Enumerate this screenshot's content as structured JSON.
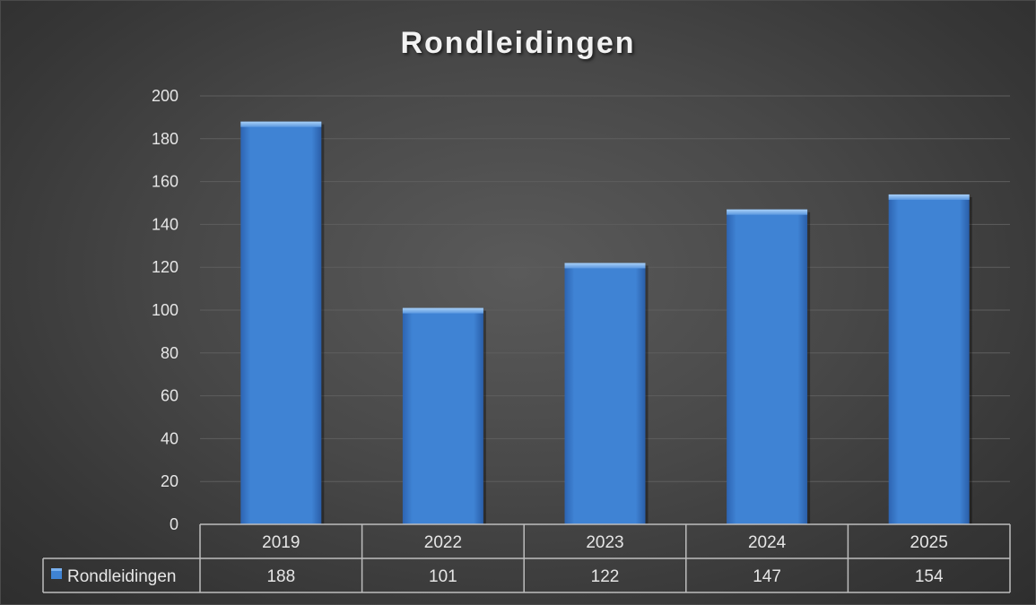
{
  "chart_data": {
    "type": "bar",
    "title": "Rondleidingen",
    "categories": [
      "2019",
      "2022",
      "2023",
      "2024",
      "2025"
    ],
    "series": [
      {
        "name": "Rondleidingen",
        "values": [
          188,
          101,
          122,
          147,
          154
        ]
      }
    ],
    "ylim": [
      0,
      200
    ],
    "y_ticks": [
      "0",
      "20",
      "40",
      "60",
      "80",
      "100",
      "120",
      "140",
      "160",
      "180",
      "200"
    ],
    "grid": true,
    "data_table": true,
    "legend_placement": "data-table",
    "colors": {
      "bar": "#3f83d4",
      "bar_top": "#7ab1ef",
      "background": "#474747",
      "text": "#e6e6e6",
      "grid": "#5e5e5e"
    }
  }
}
